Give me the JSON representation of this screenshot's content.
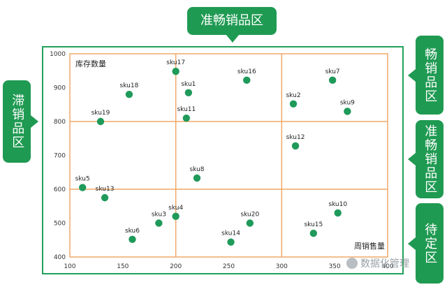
{
  "zones": {
    "top": "准畅销品区",
    "left": "滞销品区",
    "right_top": "畅销品区",
    "right_middle": "准畅销品区",
    "right_bottom": "待定区"
  },
  "watermark": "数据化管理",
  "chart_data": {
    "type": "scatter",
    "ylabel": "库存数量",
    "xlabel": "周销售量",
    "xlim": [
      100,
      400
    ],
    "ylim": [
      400,
      1000
    ],
    "x_ticks": [
      100,
      150,
      200,
      250,
      300,
      350,
      400
    ],
    "y_ticks": [
      400,
      500,
      600,
      700,
      800,
      900,
      1000
    ],
    "x_tick_labels": [
      "100",
      "150",
      "200",
      "250",
      "300",
      "350",
      "400"
    ],
    "y_tick_labels": [
      "400",
      "500",
      "600",
      "700",
      "800",
      "900",
      "1000"
    ],
    "divider_x": [
      200,
      300
    ],
    "divider_y": [
      600,
      800
    ],
    "grid": false,
    "point_color": "#1f9a5a",
    "divider_color": "#f0a868",
    "points": [
      {
        "label": "sku1",
        "x": 212,
        "y": 885
      },
      {
        "label": "sku2",
        "x": 311,
        "y": 852
      },
      {
        "label": "sku3",
        "x": 184,
        "y": 500
      },
      {
        "label": "sku4",
        "x": 200,
        "y": 520
      },
      {
        "label": "sku5",
        "x": 112,
        "y": 605
      },
      {
        "label": "sku6",
        "x": 159,
        "y": 452
      },
      {
        "label": "sku7",
        "x": 348,
        "y": 922
      },
      {
        "label": "sku8",
        "x": 220,
        "y": 633
      },
      {
        "label": "sku9",
        "x": 362,
        "y": 830
      },
      {
        "label": "sku10",
        "x": 353,
        "y": 530
      },
      {
        "label": "sku11",
        "x": 210,
        "y": 810
      },
      {
        "label": "sku12",
        "x": 313,
        "y": 728
      },
      {
        "label": "sku13",
        "x": 133,
        "y": 575
      },
      {
        "label": "sku14",
        "x": 252,
        "y": 444
      },
      {
        "label": "sku15",
        "x": 330,
        "y": 470
      },
      {
        "label": "sku16",
        "x": 267,
        "y": 922
      },
      {
        "label": "sku17",
        "x": 200,
        "y": 948
      },
      {
        "label": "sku18",
        "x": 156,
        "y": 880
      },
      {
        "label": "sku19",
        "x": 129,
        "y": 800
      },
      {
        "label": "sku20",
        "x": 270,
        "y": 500
      }
    ]
  }
}
